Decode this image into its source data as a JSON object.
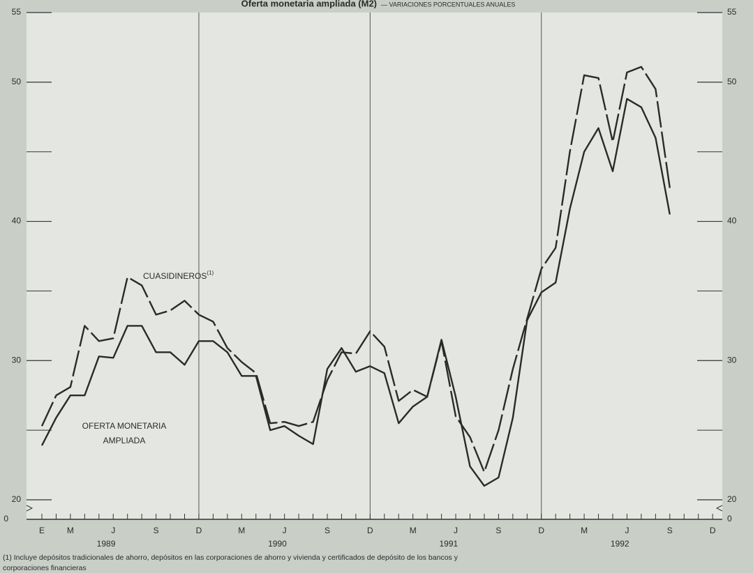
{
  "chart_data": {
    "type": "line",
    "title": "Oferta monetaria ampliada (M2)",
    "subtitle": "— VARIACIONES PORCENTUALES ANUALES",
    "categories": [
      "E",
      null,
      "M",
      null,
      null,
      "J",
      null,
      null,
      "S",
      null,
      null,
      "D",
      null,
      null,
      "M",
      null,
      null,
      "J",
      null,
      null,
      "S",
      null,
      null,
      "D",
      null,
      null,
      "M",
      null,
      null,
      "J",
      null,
      null,
      "S",
      null,
      null,
      "D",
      null,
      null,
      "M",
      null,
      null,
      "J",
      null,
      null,
      "S",
      null,
      null,
      "D"
    ],
    "years": [
      "1989",
      "1990",
      "1991",
      "1992"
    ],
    "series": [
      {
        "name": "CUASIDINEROS",
        "note_ref": "(1)",
        "color": "#2a2a2a",
        "dashed": true,
        "values": [
          25.3,
          27.5,
          28.1,
          32.5,
          31.4,
          31.6,
          36.0,
          35.4,
          33.3,
          33.6,
          34.3,
          33.3,
          32.8,
          30.9,
          29.9,
          29.1,
          25.5,
          25.6,
          25.3,
          25.6,
          28.6,
          30.6,
          30.5,
          32.1,
          31.0,
          27.1,
          27.9,
          27.4,
          31.4,
          26.0,
          24.5,
          22.0,
          25.0,
          29.4,
          33.0,
          36.6,
          38.1,
          45.0,
          50.5,
          50.3,
          45.7,
          50.7,
          51.1,
          49.5,
          42.4,
          null,
          null,
          null
        ]
      },
      {
        "name": [
          "OFERTA MONETARIA",
          "AMPLIADA"
        ],
        "color": "#2a2a2a",
        "dashed": false,
        "values": [
          23.9,
          25.9,
          27.5,
          27.5,
          30.3,
          30.2,
          32.5,
          32.5,
          30.6,
          30.6,
          29.7,
          31.4,
          31.4,
          30.6,
          28.9,
          28.9,
          25.0,
          25.3,
          24.6,
          24.0,
          29.4,
          30.9,
          29.2,
          29.6,
          29.1,
          25.5,
          26.7,
          27.4,
          31.5,
          27.4,
          22.4,
          21.0,
          21.6,
          25.9,
          32.9,
          34.9,
          35.6,
          40.9,
          45.0,
          46.7,
          43.6,
          48.8,
          48.2,
          46.0,
          40.5,
          null,
          null,
          null
        ]
      }
    ],
    "ylim": [
      20,
      55
    ],
    "yticks": [
      20,
      30,
      40,
      50,
      55
    ],
    "minor_yticks": [
      25,
      35,
      45
    ],
    "y_break_tick": 0,
    "footnote": [
      "(1) Incluye depósitos tradicionales de ahorro, depósitos en las corporaciones de ahorro y vivienda y certificados de depósito de los bancos y",
      "corporaciones financieras"
    ]
  }
}
